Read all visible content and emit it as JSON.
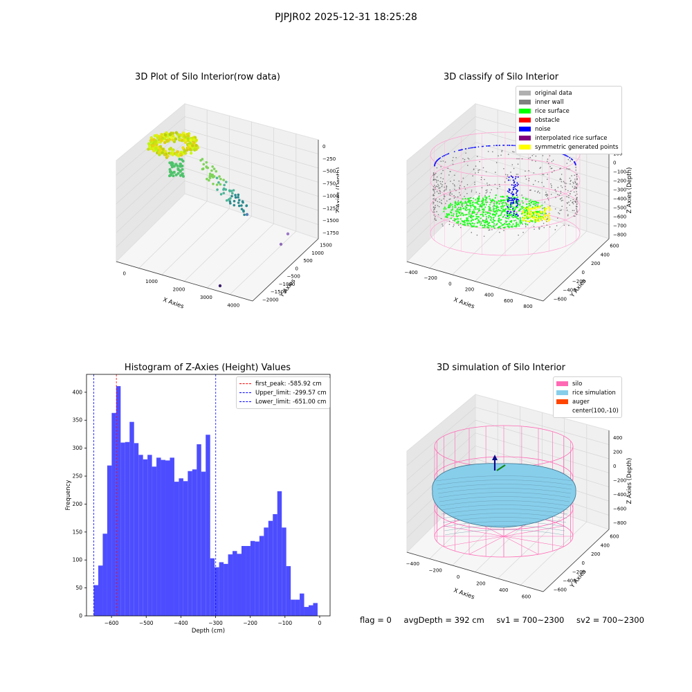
{
  "suptitle": "PJPJR02 2025-12-31 18:25:28",
  "panel_titles": {
    "raw": "3D Plot of Silo Interior(row data)",
    "classify": "3D classify of Silo Interior",
    "histogram": "Histogram of Z-Axies (Height) Values",
    "simulation": "3D simulation of Silo Interior"
  },
  "raw_axes": {
    "xlabel": "X Axies",
    "ylabel": "Y Axies",
    "zlabel": "Z Axies (Depth)",
    "xticks": [
      "0",
      "1000",
      "2000",
      "3000",
      "4000"
    ],
    "yticks": [
      "−2000",
      "−1500",
      "−1000",
      "−500",
      "0",
      "500",
      "1000",
      "1500"
    ],
    "zticks": [
      "0",
      "−250",
      "−500",
      "−750",
      "−1000",
      "−1250",
      "−1500",
      "−1750"
    ]
  },
  "classify_axes": {
    "xlabel": "X Axies",
    "ylabel": "Y Axies",
    "zlabel": "Z Axies (Depth)",
    "xticks": [
      "−400",
      "−200",
      "0",
      "200",
      "400",
      "600",
      "800"
    ],
    "yticks": [
      "−600",
      "−400",
      "−200",
      "0",
      "200",
      "400",
      "600"
    ],
    "zticks": [
      "200",
      "100",
      "0",
      "−100",
      "−200",
      "−300",
      "−400",
      "−500",
      "−600",
      "−700",
      "−800"
    ]
  },
  "classify_legend": [
    {
      "label": "original data",
      "color": "#b0b0b0"
    },
    {
      "label": "inner wall",
      "color": "#808080"
    },
    {
      "label": "rice surface",
      "color": "#00ff00"
    },
    {
      "label": "obstacle",
      "color": "#ff0000"
    },
    {
      "label": "noise",
      "color": "#0000ff"
    },
    {
      "label": "interpolated rice surface",
      "color": "#800080"
    },
    {
      "label": "symmetric generated points",
      "color": "#ffff00"
    }
  ],
  "sim_axes": {
    "xlabel": "X Axies",
    "ylabel": "Y Axies",
    "zlabel": "Z Axies (Depth)",
    "xticks": [
      "−400",
      "−200",
      "0",
      "200",
      "400",
      "600"
    ],
    "yticks": [
      "−600",
      "−400",
      "−200",
      "0",
      "200",
      "400",
      "600"
    ],
    "zticks": [
      "400",
      "200",
      "0",
      "−200",
      "−400",
      "−600",
      "−800"
    ]
  },
  "sim_legend": [
    {
      "label": "silo",
      "color": "#ff69b4"
    },
    {
      "label": "rice simulation",
      "color": "#87ceeb"
    },
    {
      "label": "auger",
      "color": "#ff4500"
    },
    {
      "label": "center(100,-10)",
      "color": ""
    }
  ],
  "chart_data": {
    "type": "bar",
    "title": "Histogram of Z-Axies (Height) Values",
    "xlabel": "Depth (cm)",
    "ylabel": "Frequency",
    "xlim": [
      -672,
      30
    ],
    "ylim": [
      0,
      432
    ],
    "xticks": [
      -600,
      -500,
      -400,
      -300,
      -200,
      -100,
      0
    ],
    "xtick_labels": [
      "−600",
      "−500",
      "−400",
      "−300",
      "−200",
      "−100",
      "0"
    ],
    "yticks": [
      0,
      50,
      100,
      150,
      200,
      250,
      300,
      350,
      400
    ],
    "bar_color": "#4d4dff",
    "bin_start": -651.0,
    "bin_width": 12.9,
    "values": [
      55,
      90,
      147,
      269,
      363,
      411,
      310,
      311,
      347,
      309,
      288,
      280,
      288,
      267,
      283,
      279,
      278,
      283,
      240,
      246,
      241,
      259,
      262,
      307,
      258,
      324,
      103,
      87,
      96,
      93,
      110,
      116,
      111,
      125,
      125,
      134,
      133,
      143,
      158,
      170,
      182,
      223,
      158,
      89,
      29,
      29,
      40,
      16,
      19,
      23
    ],
    "vlines": [
      {
        "label": "first_peak: -585.92 cm",
        "x": -585.92,
        "color": "#ff0000"
      },
      {
        "label": "Upper_limit: -299.57 cm",
        "x": -299.57,
        "color": "#0000ff"
      },
      {
        "label": "Lower_limit: -651.00 cm",
        "x": -651.0,
        "color": "#0000ff"
      }
    ],
    "grid": false,
    "legend_position": "top-right"
  },
  "footer": {
    "flag": "flag = 0",
    "avg_depth": "avgDepth = 392 cm",
    "sv1": "sv1 = 700~2300",
    "sv2": "sv2 = 700~2300"
  }
}
